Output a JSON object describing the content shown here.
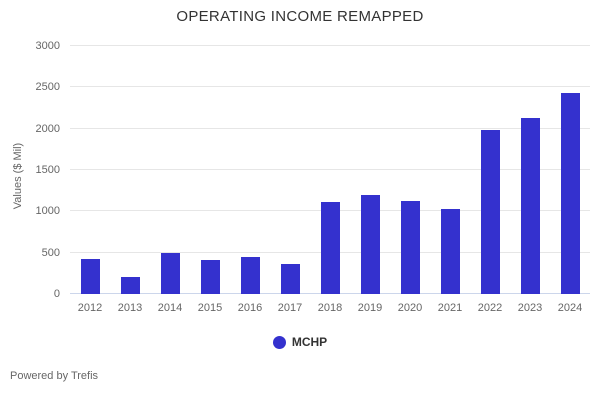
{
  "chart_data": {
    "type": "bar",
    "title": "OPERATING INCOME REMAPPED",
    "xlabel": "",
    "ylabel": "Values ($ Mil)",
    "categories": [
      "2012",
      "2013",
      "2014",
      "2015",
      "2016",
      "2017",
      "2018",
      "2019",
      "2020",
      "2021",
      "2022",
      "2023",
      "2024"
    ],
    "series": [
      {
        "name": "MCHP",
        "color": "#3431ce",
        "values": [
          420,
          200,
          500,
          410,
          450,
          360,
          1110,
          1200,
          1130,
          1030,
          1980,
          2130,
          2430
        ]
      }
    ],
    "ylim": [
      0,
      3000
    ],
    "yticks": [
      0,
      500,
      1000,
      1500,
      2000,
      2500,
      3000
    ],
    "grid": true,
    "legend_position": "bottom"
  },
  "footer": {
    "credit": "Powered by Trefis"
  },
  "colors": {
    "bar": "#3431ce",
    "gridline": "#e6e6e6",
    "zero_axis_line": "#ccd6eb",
    "tick_text": "#666666",
    "title_text": "#333333",
    "legend_text": "#333333",
    "background": "#ffffff"
  }
}
